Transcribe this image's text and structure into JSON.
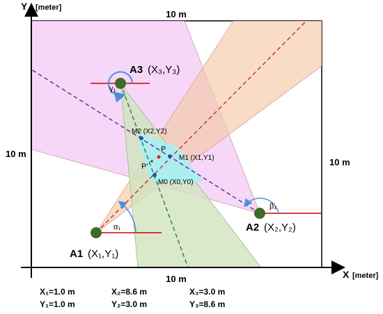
{
  "axes": {
    "y_label": "Y",
    "y_unit": "[meter]",
    "x_label": "X",
    "x_unit": "[meter]"
  },
  "dimensions": {
    "top": "10 m",
    "left": "10 m",
    "right": "10 m",
    "bottom": "10 m"
  },
  "anchors": [
    {
      "name": "A1",
      "coords": "(X₁,Y₁)",
      "angle": "α₁"
    },
    {
      "name": "A2",
      "coords": "(X₂,Y₂)",
      "angle": "β₁"
    },
    {
      "name": "A3",
      "coords": "(X₃,Y₃)",
      "angle": "γ₁"
    }
  ],
  "points": [
    {
      "label": "M2 (X2,Y2)"
    },
    {
      "label": "M1 (X1,Y1)"
    },
    {
      "label": "M0 (X0,Y0)"
    },
    {
      "label": "P"
    },
    {
      "label": "P'"
    }
  ],
  "coordinates": [
    [
      "X₁=1.0 m",
      "X₂=8.6 m",
      "X₃=3.0 m"
    ],
    [
      "Y₁=1.0 m",
      "Y₂=3.0 m",
      "Y₃=8.6 m"
    ]
  ]
}
